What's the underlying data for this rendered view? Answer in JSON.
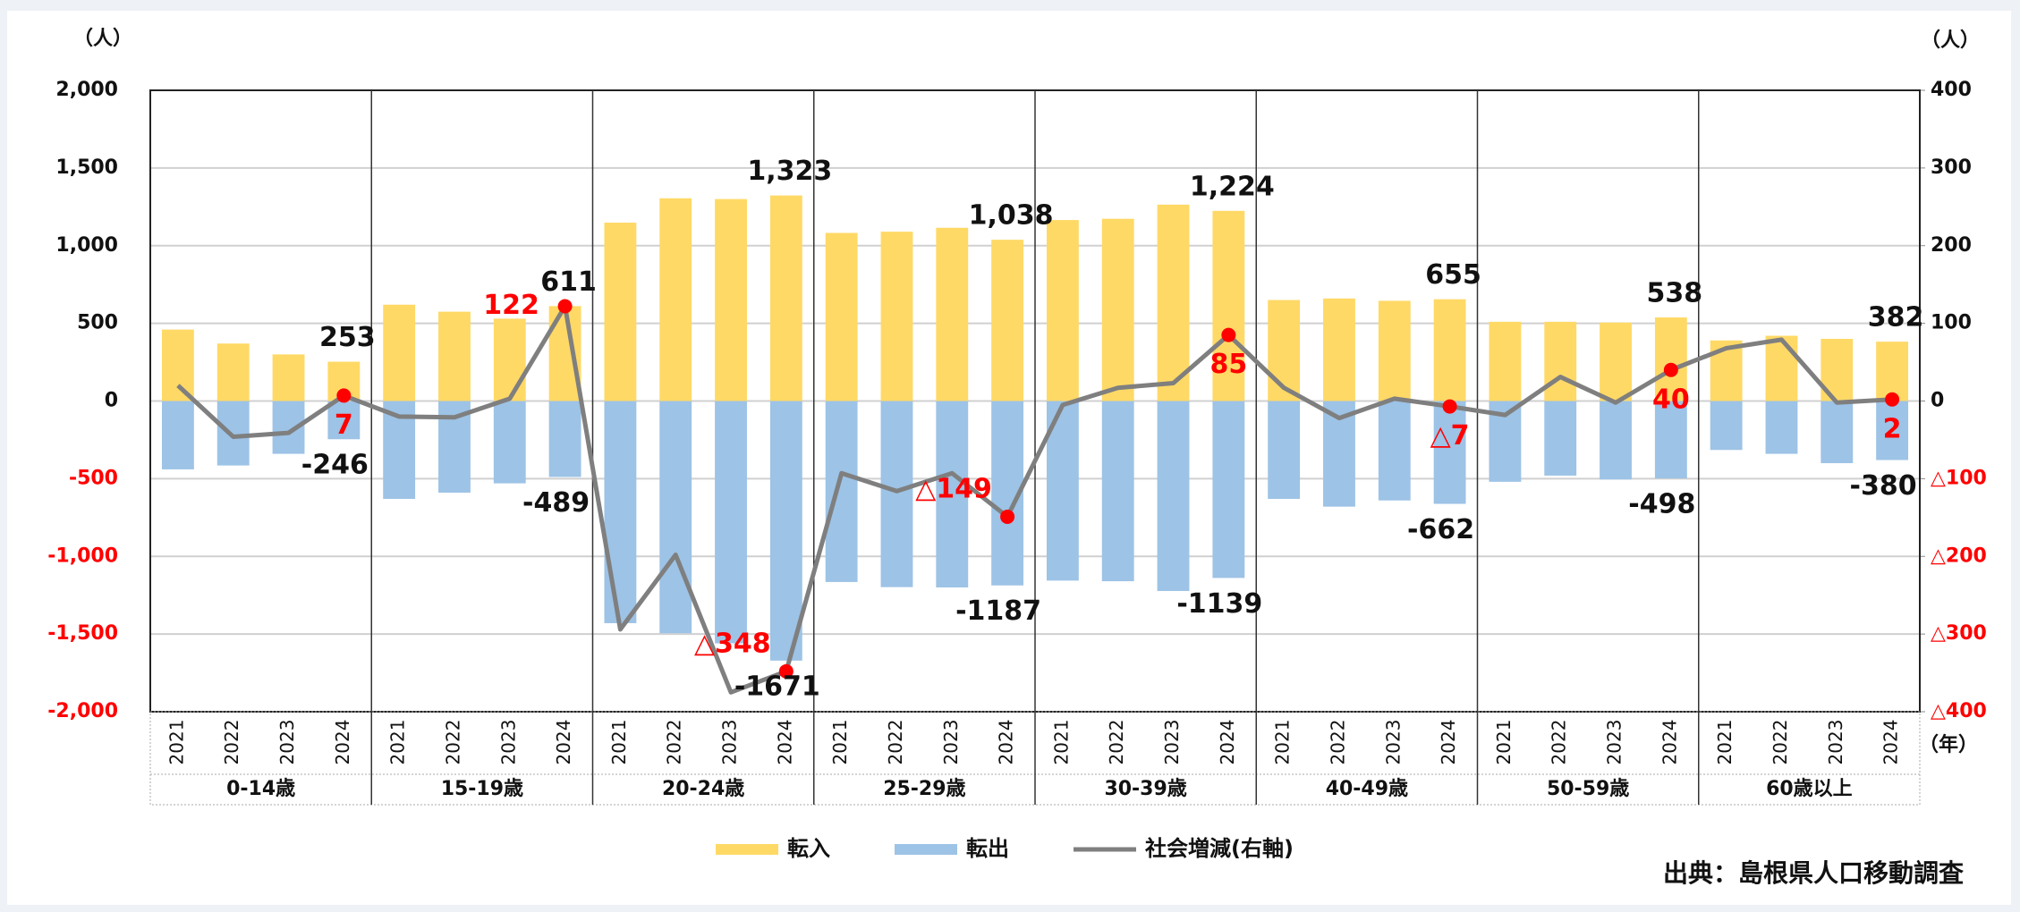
{
  "chart_data": {
    "type": "bar-line",
    "y_unit": "（人）",
    "y2_unit": "（人）",
    "x_unit": "（年）",
    "source": "出典：島根県人口移動調査",
    "categories": [
      "2021",
      "2022",
      "2023",
      "2024",
      "2021",
      "2022",
      "2023",
      "2024",
      "2021",
      "2022",
      "2023",
      "2024",
      "2021",
      "2022",
      "2023",
      "2024",
      "2021",
      "2022",
      "2023",
      "2024",
      "2021",
      "2022",
      "2023",
      "2024",
      "2021",
      "2022",
      "2023",
      "2024",
      "2021",
      "2022",
      "2023",
      "2024"
    ],
    "groups": [
      "0-14歳",
      "15-19歳",
      "20-24歳",
      "25-29歳",
      "30-39歳",
      "40-49歳",
      "50-59歳",
      "60歳以上"
    ],
    "series": [
      {
        "name": "転入",
        "color": "#FFD966",
        "values": [
          460,
          370,
          300,
          253,
          620,
          575,
          530,
          611,
          1148,
          1305,
          1300,
          1323,
          1082,
          1090,
          1115,
          1038,
          1165,
          1173,
          1264,
          1224,
          650,
          660,
          645,
          655,
          510,
          510,
          505,
          538,
          390,
          420,
          400,
          382
        ],
        "value_labels": [
          null,
          null,
          null,
          "253",
          null,
          null,
          null,
          "611",
          null,
          null,
          null,
          "1,323",
          null,
          null,
          null,
          "1,038",
          null,
          null,
          null,
          "1,224",
          null,
          null,
          null,
          "655",
          null,
          null,
          null,
          "538",
          null,
          null,
          null,
          "382"
        ]
      },
      {
        "name": "転出",
        "color": "#9DC3E6",
        "values": [
          -440,
          -415,
          -340,
          -246,
          -630,
          -590,
          -530,
          -489,
          -1430,
          -1495,
          -1560,
          -1671,
          -1165,
          -1198,
          -1200,
          -1187,
          -1156,
          -1160,
          -1223,
          -1139,
          -630,
          -680,
          -640,
          -662,
          -520,
          -480,
          -505,
          -498,
          -315,
          -340,
          -400,
          -380
        ],
        "value_labels": [
          null,
          null,
          null,
          "-246",
          null,
          null,
          null,
          "-489",
          null,
          null,
          null,
          "-1671",
          null,
          null,
          null,
          "-1187",
          null,
          null,
          null,
          "-1139",
          null,
          null,
          null,
          "-662",
          null,
          null,
          null,
          "-498",
          null,
          null,
          null,
          "-380"
        ]
      },
      {
        "name": "社会増減(右軸)",
        "color": "#7F7F7F",
        "axis": "y2",
        "values": [
          20,
          -46,
          -41,
          7,
          -20,
          -21,
          3,
          122,
          -294,
          -198,
          -375,
          -348,
          -93,
          -116,
          -93,
          -149,
          -5,
          17,
          23,
          85,
          17,
          -22,
          3,
          -7,
          -18,
          31,
          -2,
          40,
          68,
          79,
          -2,
          2
        ],
        "value_labels": [
          null,
          null,
          null,
          "7",
          null,
          null,
          null,
          "122",
          null,
          null,
          null,
          "△348",
          null,
          null,
          null,
          "△149",
          null,
          null,
          null,
          "85",
          null,
          null,
          null,
          "△7",
          null,
          null,
          null,
          "40",
          null,
          null,
          null,
          "2"
        ]
      }
    ],
    "ylim": [
      -2000,
      2000
    ],
    "yticks": [
      {
        "value": 2000,
        "label": "2,000"
      },
      {
        "value": 1500,
        "label": "1,500"
      },
      {
        "value": 1000,
        "label": "1,000"
      },
      500,
      0,
      -500,
      {
        "value": -1000,
        "label": "-1,000"
      },
      {
        "value": -1500,
        "label": "-1,500"
      },
      {
        "value": -2000,
        "label": "-2,000"
      }
    ],
    "y2lim": [
      -400,
      400
    ],
    "y2ticks": [
      400,
      300,
      200,
      100,
      0,
      {
        "value": -100,
        "label": "△100"
      },
      {
        "value": -200,
        "label": "△200"
      },
      {
        "value": -300,
        "label": "△300"
      },
      {
        "value": -400,
        "label": "△400"
      }
    ],
    "grid": true,
    "legend": "bottom",
    "label_color": "#FF0000"
  }
}
